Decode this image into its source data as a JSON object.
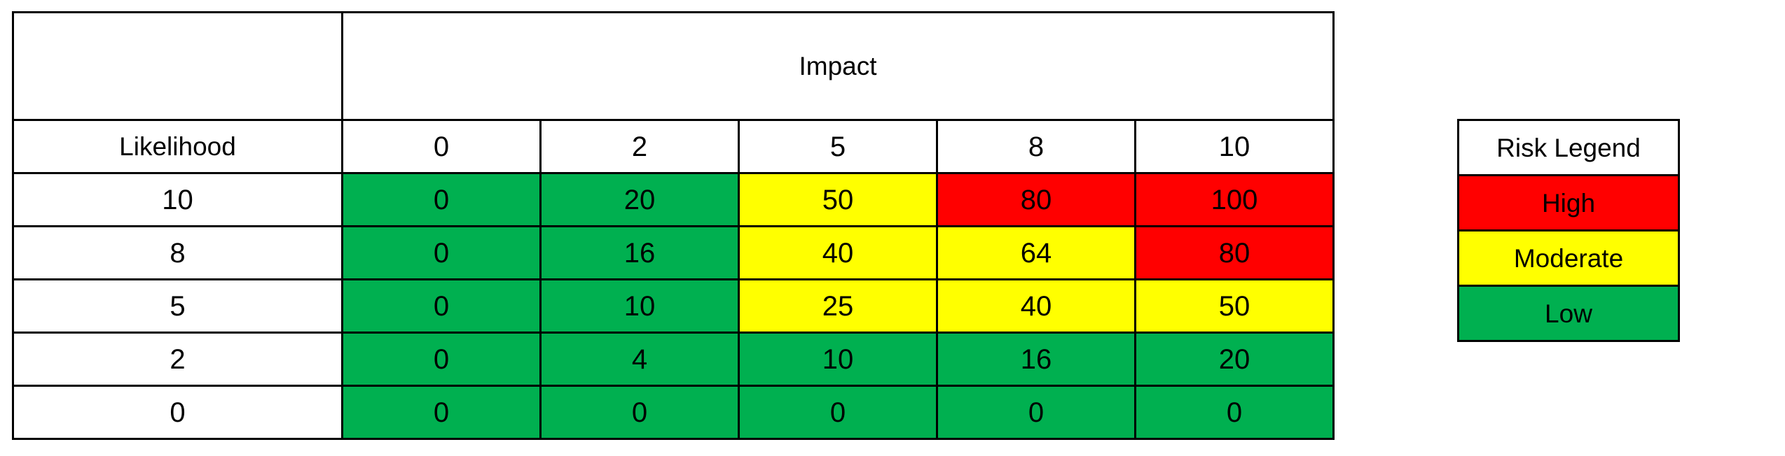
{
  "colors": {
    "low": "#00b050",
    "moderate": "#ffff00",
    "high": "#ff0000",
    "header": "#ffffff"
  },
  "matrix": {
    "corner": "",
    "impact_label": "Impact",
    "likelihood_label": "Likelihood",
    "impact_values": [
      "0",
      "2",
      "5",
      "8",
      "10"
    ],
    "rows": [
      {
        "likelihood": "10",
        "cells": [
          {
            "v": "0",
            "level": "low"
          },
          {
            "v": "20",
            "level": "low"
          },
          {
            "v": "50",
            "level": "moderate"
          },
          {
            "v": "80",
            "level": "high"
          },
          {
            "v": "100",
            "level": "high"
          }
        ]
      },
      {
        "likelihood": "8",
        "cells": [
          {
            "v": "0",
            "level": "low"
          },
          {
            "v": "16",
            "level": "low"
          },
          {
            "v": "40",
            "level": "moderate"
          },
          {
            "v": "64",
            "level": "moderate"
          },
          {
            "v": "80",
            "level": "high"
          }
        ]
      },
      {
        "likelihood": "5",
        "cells": [
          {
            "v": "0",
            "level": "low"
          },
          {
            "v": "10",
            "level": "low"
          },
          {
            "v": "25",
            "level": "moderate"
          },
          {
            "v": "40",
            "level": "moderate"
          },
          {
            "v": "50",
            "level": "moderate"
          }
        ]
      },
      {
        "likelihood": "2",
        "cells": [
          {
            "v": "0",
            "level": "low"
          },
          {
            "v": "4",
            "level": "low"
          },
          {
            "v": "10",
            "level": "low"
          },
          {
            "v": "16",
            "level": "low"
          },
          {
            "v": "20",
            "level": "low"
          }
        ]
      },
      {
        "likelihood": "0",
        "cells": [
          {
            "v": "0",
            "level": "low"
          },
          {
            "v": "0",
            "level": "low"
          },
          {
            "v": "0",
            "level": "low"
          },
          {
            "v": "0",
            "level": "low"
          },
          {
            "v": "0",
            "level": "low"
          }
        ]
      }
    ]
  },
  "legend": {
    "title": "Risk Legend",
    "items": [
      {
        "label": "High",
        "level": "high"
      },
      {
        "label": "Moderate",
        "level": "moderate"
      },
      {
        "label": "Low",
        "level": "low"
      }
    ]
  }
}
